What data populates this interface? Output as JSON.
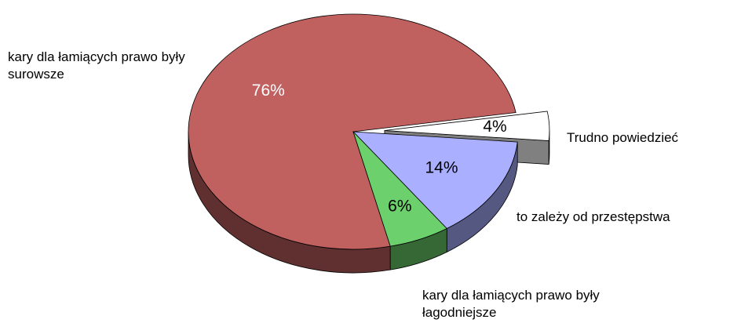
{
  "chart_data": {
    "type": "pie3d",
    "categories": [
      "kary dla łamiących prawo były surowsze",
      "Trudno powiedzieć",
      "to zależy od przestępstwa",
      "kary dla łamiących prawo były łagodniejsze"
    ],
    "values": [
      76,
      4,
      14,
      6
    ],
    "value_labels": [
      "76%",
      "4%",
      "14%",
      "6%"
    ],
    "colors": [
      "#c0605f",
      "#ffffff",
      "#aab0ff",
      "#6cd06c"
    ]
  }
}
